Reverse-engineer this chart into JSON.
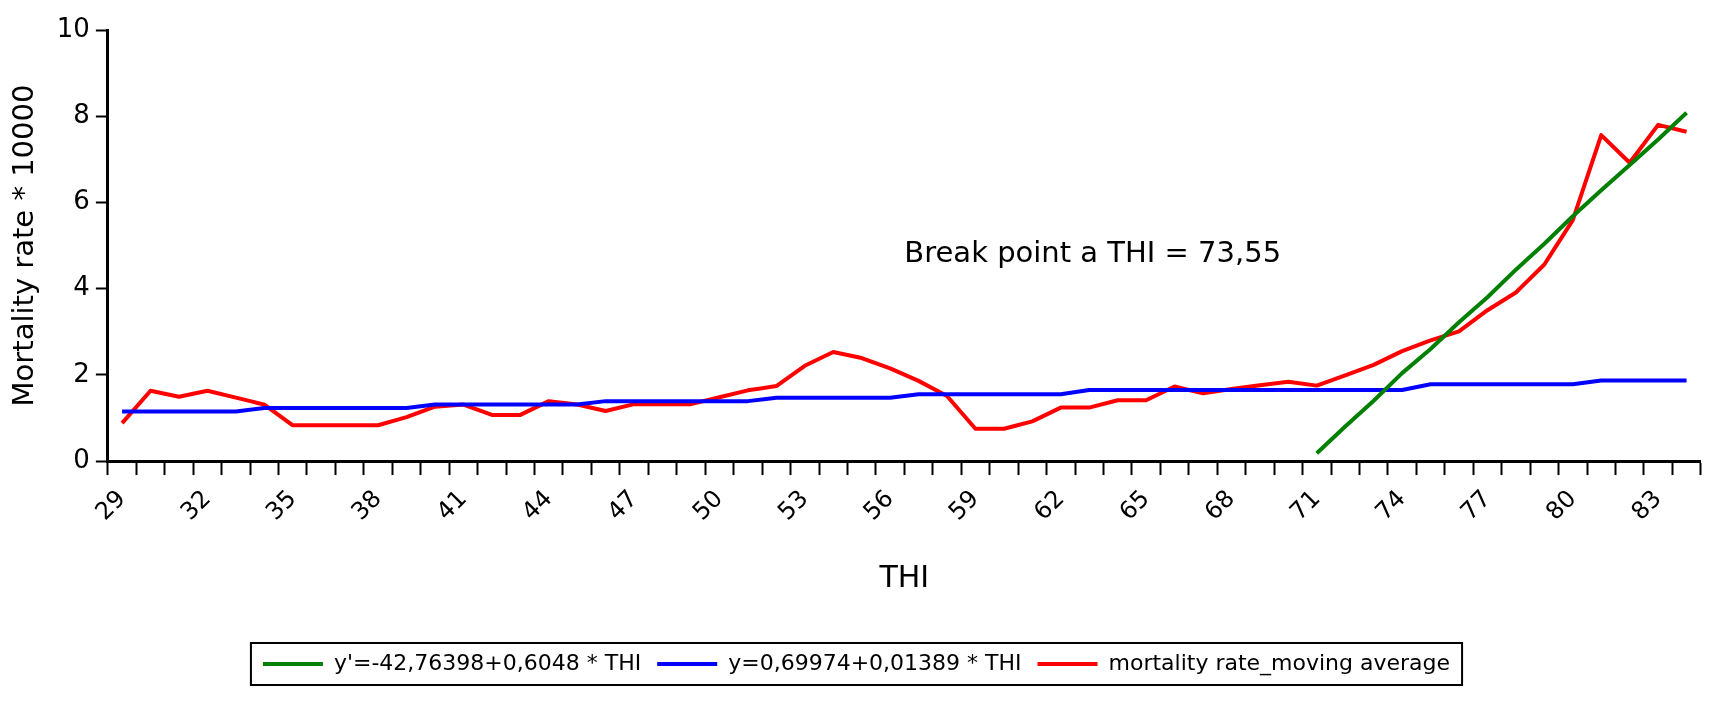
{
  "chart_data": {
    "type": "line",
    "xlabel": "THI",
    "ylabel": "Mortality rate * 10000",
    "categories": [
      "29",
      null,
      null,
      "32",
      null,
      null,
      "35",
      null,
      null,
      "38",
      null,
      null,
      "41",
      null,
      null,
      "44",
      null,
      null,
      "47",
      null,
      null,
      "50",
      null,
      null,
      "53",
      null,
      null,
      "56",
      null,
      null,
      "59",
      null,
      null,
      "62",
      null,
      null,
      "65",
      null,
      null,
      "68",
      null,
      null,
      "71",
      null,
      null,
      "74",
      null,
      null,
      "77",
      null,
      null,
      "80",
      null,
      null,
      "83",
      null
    ],
    "series": [
      {
        "name": "y'=-42,76398+0,6048 * THI",
        "color": "#008000",
        "values": [
          null,
          null,
          null,
          null,
          null,
          null,
          null,
          null,
          null,
          null,
          null,
          null,
          null,
          null,
          null,
          null,
          null,
          null,
          null,
          null,
          null,
          null,
          null,
          null,
          null,
          null,
          null,
          null,
          null,
          null,
          null,
          null,
          null,
          null,
          null,
          null,
          null,
          null,
          null,
          null,
          null,
          null,
          0.18,
          0.8,
          1.4,
          2.04,
          2.6,
          3.22,
          3.8,
          4.44,
          5.04,
          5.68,
          6.28,
          6.87,
          7.46,
          8.08
        ]
      },
      {
        "name": "y=0,69974+0,01389 * THI",
        "color": "#0000ff",
        "values": [
          1.15,
          1.15,
          1.15,
          1.15,
          1.15,
          1.23,
          1.23,
          1.23,
          1.23,
          1.23,
          1.23,
          1.31,
          1.31,
          1.31,
          1.31,
          1.31,
          1.31,
          1.39,
          1.39,
          1.39,
          1.39,
          1.39,
          1.39,
          1.47,
          1.47,
          1.47,
          1.47,
          1.47,
          1.55,
          1.55,
          1.55,
          1.55,
          1.55,
          1.55,
          1.65,
          1.65,
          1.65,
          1.65,
          1.65,
          1.65,
          1.65,
          1.65,
          1.65,
          1.65,
          1.65,
          1.65,
          1.78,
          1.78,
          1.78,
          1.78,
          1.78,
          1.78,
          1.87,
          1.87,
          1.87,
          1.87
        ]
      },
      {
        "name": "mortality rate_moving average",
        "color": "#ff0000",
        "values": [
          0.88,
          1.63,
          1.49,
          1.63,
          1.47,
          1.31,
          0.83,
          0.83,
          0.83,
          0.83,
          1.02,
          1.26,
          1.31,
          1.07,
          1.07,
          1.39,
          1.31,
          1.16,
          1.32,
          1.32,
          1.32,
          1.48,
          1.64,
          1.74,
          2.21,
          2.53,
          2.39,
          2.15,
          1.86,
          1.51,
          0.75,
          0.75,
          0.92,
          1.24,
          1.24,
          1.41,
          1.41,
          1.73,
          1.57,
          1.67,
          1.76,
          1.84,
          1.75,
          1.99,
          2.23,
          2.55,
          2.8,
          3.01,
          3.5,
          3.91,
          4.56,
          5.59,
          7.56,
          6.92,
          7.8,
          7.64
        ]
      }
    ],
    "ylim": [
      0,
      10
    ],
    "yticks": [
      0,
      2,
      4,
      6,
      8,
      10
    ],
    "grid": false,
    "legend": "bottom",
    "marker": "none",
    "line_style": "solid",
    "annotations": [
      "Break point a THI = 73,55"
    ]
  }
}
